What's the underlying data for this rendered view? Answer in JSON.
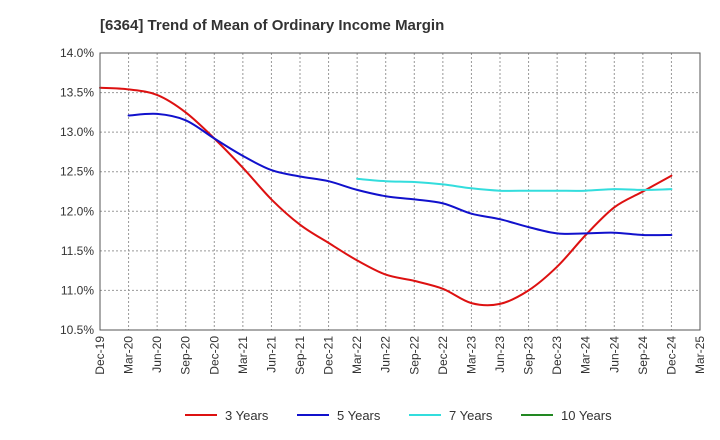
{
  "chart_data": {
    "type": "line",
    "title": "[6364]  Trend of Mean of Ordinary Income Margin",
    "xlabel": "",
    "ylabel": "",
    "ylim": [
      10.5,
      14.0
    ],
    "yticks": [
      "10.5%",
      "11.0%",
      "11.5%",
      "12.0%",
      "12.5%",
      "13.0%",
      "13.5%",
      "14.0%"
    ],
    "categories": [
      "Dec-19",
      "Mar-20",
      "Jun-20",
      "Sep-20",
      "Dec-20",
      "Mar-21",
      "Jun-21",
      "Sep-21",
      "Dec-21",
      "Mar-22",
      "Jun-22",
      "Sep-22",
      "Dec-22",
      "Mar-23",
      "Jun-23",
      "Sep-23",
      "Dec-23",
      "Mar-24",
      "Jun-24",
      "Sep-24",
      "Dec-24",
      "Mar-25"
    ],
    "grid": true,
    "legend_position": "bottom",
    "series": [
      {
        "name": "3 Years",
        "color": "#dd1111",
        "values": [
          13.56,
          13.54,
          13.47,
          13.25,
          12.92,
          12.55,
          12.15,
          11.83,
          11.6,
          11.38,
          11.2,
          11.12,
          11.02,
          10.84,
          10.83,
          11.0,
          11.3,
          11.7,
          12.05,
          12.25,
          12.45,
          null
        ]
      },
      {
        "name": "5 Years",
        "color": "#1111cc",
        "values": [
          null,
          13.21,
          13.23,
          13.15,
          12.92,
          12.7,
          12.52,
          12.44,
          12.38,
          12.27,
          12.19,
          12.15,
          12.1,
          11.97,
          11.9,
          11.8,
          11.72,
          11.72,
          11.73,
          11.7,
          11.7,
          null
        ]
      },
      {
        "name": "7 Years",
        "color": "#33dddd",
        "values": [
          null,
          null,
          null,
          null,
          null,
          null,
          null,
          null,
          null,
          12.41,
          12.38,
          12.37,
          12.34,
          12.29,
          12.26,
          12.26,
          12.26,
          12.26,
          12.28,
          12.27,
          12.28,
          null
        ]
      },
      {
        "name": "10 Years",
        "color": "#228822",
        "values": [
          null,
          null,
          null,
          null,
          null,
          null,
          null,
          null,
          null,
          null,
          null,
          null,
          null,
          null,
          null,
          null,
          null,
          null,
          null,
          null,
          null,
          null
        ]
      }
    ]
  }
}
